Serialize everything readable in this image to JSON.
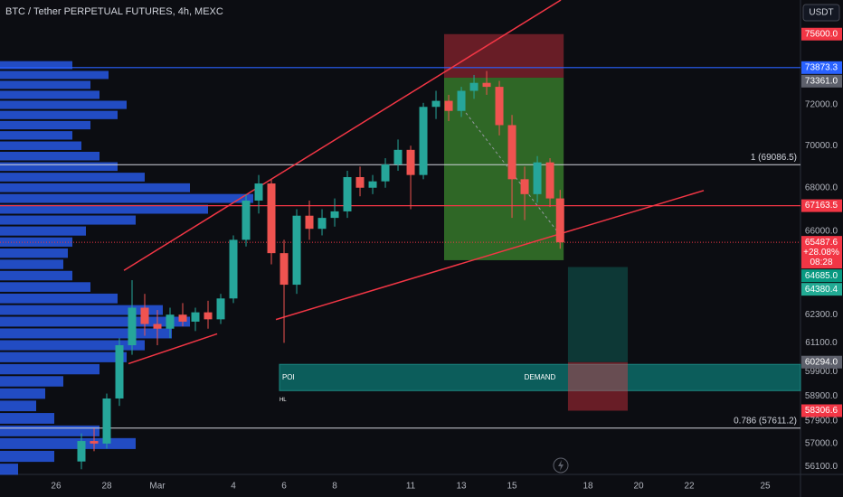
{
  "chart_data": {
    "type": "candlestick",
    "title": "BTC / Tether PERPETUAL FUTURES, 4h, MEXC",
    "currency": "USDT",
    "log_scale": true,
    "up_color": "#26a69a",
    "down_color": "#ef5350",
    "x": [
      1.0,
      1.5,
      2.0,
      2.5,
      3.0,
      3.5,
      4.0,
      4.5,
      5.0,
      5.5,
      6.0,
      6.5,
      7.0,
      7.5,
      8.0,
      8.5,
      9.0,
      9.5,
      10.0,
      10.5,
      11.0,
      11.5,
      12.0,
      12.5,
      13.0,
      13.5,
      14.0,
      14.5,
      15.0,
      15.5,
      16.0,
      16.5,
      17.0,
      17.5,
      18.0,
      18.5,
      19.0,
      19.5,
      19.9
    ],
    "open": [
      56300,
      57100,
      57000,
      58800,
      61000,
      62600,
      61900,
      61700,
      62300,
      62000,
      62400,
      62100,
      63000,
      65600,
      67400,
      68200,
      65000,
      63600,
      66700,
      66100,
      66600,
      66900,
      68500,
      68000,
      68300,
      69100,
      69800,
      68600,
      71900,
      72200,
      71700,
      72700,
      73100,
      72900,
      71000,
      68400,
      67700,
      69200,
      67500
    ],
    "high": [
      57400,
      57600,
      59000,
      61300,
      63800,
      63200,
      62500,
      62600,
      62800,
      62600,
      62900,
      63200,
      65800,
      67700,
      68600,
      68400,
      65600,
      67000,
      67400,
      67000,
      67500,
      68800,
      69000,
      68600,
      69400,
      70300,
      70000,
      72100,
      72700,
      72500,
      72900,
      73500,
      73700,
      73200,
      71500,
      69000,
      69500,
      69400,
      67900
    ],
    "low": [
      56000,
      56700,
      56800,
      58500,
      60600,
      61400,
      61000,
      61300,
      61800,
      61600,
      61700,
      61900,
      62800,
      65300,
      66800,
      64500,
      61100,
      63200,
      65600,
      65800,
      66200,
      66600,
      67600,
      67700,
      68000,
      68800,
      67000,
      68400,
      71300,
      71200,
      71400,
      72300,
      72500,
      70500,
      66600,
      66500,
      67300,
      67100,
      65200
    ],
    "close": [
      57100,
      57000,
      58800,
      61000,
      62600,
      61900,
      61700,
      62300,
      62000,
      62400,
      62100,
      63000,
      65600,
      67400,
      68200,
      65000,
      63600,
      66700,
      66100,
      66600,
      66900,
      68500,
      68000,
      68300,
      69100,
      69800,
      68600,
      71900,
      72200,
      71700,
      72700,
      73100,
      72900,
      71000,
      68400,
      67700,
      69200,
      67500,
      65487.6
    ],
    "change_label": "+28.08%",
    "countdown": "08:28",
    "xlim": [
      -2.214,
      29.39
    ],
    "ylim": [
      55800,
      77400
    ],
    "xticks": [
      {
        "value": 0,
        "label": "26"
      },
      {
        "value": 2,
        "label": "28"
      },
      {
        "value": 4,
        "label": "Mar"
      },
      {
        "value": 7,
        "label": "4"
      },
      {
        "value": 9,
        "label": "6"
      },
      {
        "value": 11,
        "label": "8"
      },
      {
        "value": 14,
        "label": "11"
      },
      {
        "value": 16,
        "label": "13"
      },
      {
        "value": 18,
        "label": "15"
      },
      {
        "value": 21,
        "label": "18"
      },
      {
        "value": 23,
        "label": "20"
      },
      {
        "value": 25,
        "label": "22"
      },
      {
        "value": 28,
        "label": "25"
      }
    ],
    "yticks": [
      {
        "value": 72000,
        "label": "72000.0"
      },
      {
        "value": 70000,
        "label": "70000.0"
      },
      {
        "value": 68000,
        "label": "68000.0"
      },
      {
        "value": 66000,
        "label": "66000.0"
      },
      {
        "value": 62300,
        "label": "62300.0"
      },
      {
        "value": 61100,
        "label": "61100.0"
      },
      {
        "value": 59900,
        "label": "59900.0"
      },
      {
        "value": 58900,
        "label": "58900.0"
      },
      {
        "value": 57900,
        "label": "57900.0"
      },
      {
        "value": 57000,
        "label": "57000.0"
      },
      {
        "value": 56100,
        "label": "56100.0"
      }
    ],
    "lines": [
      {
        "price": 73873.3,
        "color": "#2962ff"
      },
      {
        "price": 67163.5,
        "color": "#f23645"
      }
    ],
    "fib_levels": [
      {
        "price": 69086.5,
        "label": "1 (69086.5)"
      },
      {
        "price": 57611.2,
        "label": "0.786 (57611.2)"
      }
    ],
    "positions": [
      {
        "x0": 15.32,
        "x1": 20.04,
        "entry": {
          "value": 73361,
          "label": "73361.0"
        },
        "stop": {
          "value": 75600,
          "label": "75600.0"
        },
        "target": {
          "value": 64685,
          "label": "64685.0"
        },
        "target_color": "#089981"
      },
      {
        "x0": 20.21,
        "x1": 22.57,
        "entry": {
          "value": 60294,
          "label": "60294.0"
        },
        "stop": 58306.6,
        "target": 64380.4,
        "target_color": "#22ab94"
      }
    ],
    "zone": {
      "x0": 8.82,
      "top": 60200,
      "bottom": 59120,
      "labels": [
        "POI",
        "DEMAND"
      ],
      "note": "HL"
    },
    "trend_lines": [
      [
        [
          2.68,
          64230
        ],
        [
          19.93,
          77400
        ]
      ],
      [
        [
          2.86,
          60230
        ],
        [
          6.36,
          61480
        ]
      ],
      [
        [
          8.68,
          62090
        ],
        [
          25.57,
          67870
        ]
      ]
    ],
    "projection": [
      [
        16.18,
        71600
      ],
      [
        19.93,
        65770
      ]
    ],
    "volume_profile": {
      "prices": [
        56000,
        56500,
        57000,
        57500,
        58000,
        58500,
        59000,
        59500,
        60000,
        60500,
        61000,
        61500,
        62000,
        62500,
        63000,
        63500,
        64000,
        64500,
        65000,
        65500,
        66000,
        66500,
        67000,
        67500,
        68000,
        68500,
        69000,
        69500,
        70000,
        70500,
        71000,
        71500,
        72000,
        72500,
        73000,
        73500,
        74000
      ],
      "volumes": [
        20,
        60,
        150,
        110,
        60,
        40,
        50,
        70,
        110,
        140,
        160,
        190,
        210,
        180,
        130,
        100,
        80,
        70,
        75,
        80,
        95,
        150,
        230,
        280,
        210,
        160,
        130,
        110,
        90,
        80,
        100,
        130,
        140,
        110,
        100,
        120,
        80
      ]
    }
  }
}
